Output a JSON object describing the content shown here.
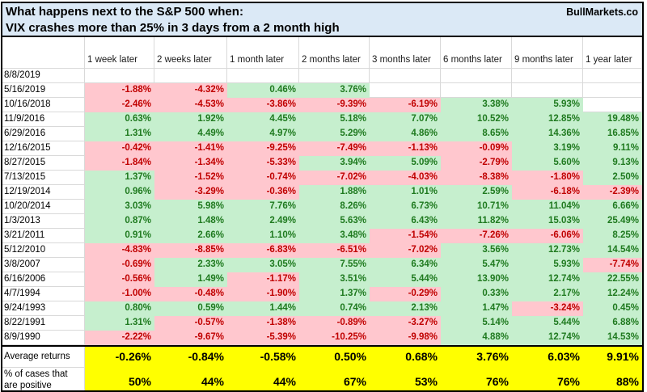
{
  "title": {
    "line1": "What happens next to the S&P 500 when:",
    "line2": "VIX crashes more than 25% in 3 days from a 2 month high",
    "brand": "BullMarkets.co"
  },
  "columns": [
    "1 week later",
    "2 weeks later",
    "1 month later",
    "2 months later",
    "3 months later",
    "6 months later",
    "9 months later",
    "1 year later"
  ],
  "rows": [
    {
      "date": "8/8/2019",
      "values": [
        "",
        "",
        "",
        "",
        "",
        "",
        "",
        ""
      ]
    },
    {
      "date": "5/16/2019",
      "values": [
        "-1.88%",
        "-4.32%",
        "0.46%",
        "3.76%",
        "",
        "",
        "",
        ""
      ]
    },
    {
      "date": "10/16/2018",
      "values": [
        "-2.46%",
        "-4.53%",
        "-3.86%",
        "-9.39%",
        "-6.19%",
        "3.38%",
        "5.93%",
        ""
      ]
    },
    {
      "date": "11/9/2016",
      "values": [
        "0.63%",
        "1.92%",
        "4.45%",
        "5.18%",
        "7.07%",
        "10.52%",
        "12.85%",
        "19.48%"
      ]
    },
    {
      "date": "6/29/2016",
      "values": [
        "1.31%",
        "4.49%",
        "4.97%",
        "5.29%",
        "4.86%",
        "8.65%",
        "14.36%",
        "16.85%"
      ]
    },
    {
      "date": "12/16/2015",
      "values": [
        "-0.42%",
        "-1.41%",
        "-9.25%",
        "-7.49%",
        "-1.13%",
        "-0.09%",
        "3.19%",
        "9.11%"
      ]
    },
    {
      "date": "8/27/2015",
      "values": [
        "-1.84%",
        "-1.34%",
        "-5.33%",
        "3.94%",
        "5.09%",
        "-2.79%",
        "5.60%",
        "9.13%"
      ]
    },
    {
      "date": "7/13/2015",
      "values": [
        "1.37%",
        "-1.52%",
        "-0.74%",
        "-7.02%",
        "-4.03%",
        "-8.38%",
        "-1.80%",
        "2.50%"
      ]
    },
    {
      "date": "12/19/2014",
      "values": [
        "0.96%",
        "-3.29%",
        "-0.36%",
        "1.88%",
        "1.01%",
        "2.59%",
        "-6.18%",
        "-2.39%"
      ]
    },
    {
      "date": "10/20/2014",
      "values": [
        "3.03%",
        "5.98%",
        "7.76%",
        "8.26%",
        "6.73%",
        "10.71%",
        "11.04%",
        "6.66%"
      ]
    },
    {
      "date": "1/3/2013",
      "values": [
        "0.87%",
        "1.48%",
        "2.49%",
        "5.63%",
        "6.43%",
        "11.82%",
        "15.03%",
        "25.49%"
      ]
    },
    {
      "date": "3/21/2011",
      "values": [
        "0.91%",
        "2.66%",
        "1.10%",
        "3.48%",
        "-1.54%",
        "-7.26%",
        "-6.06%",
        "8.25%"
      ]
    },
    {
      "date": "5/12/2010",
      "values": [
        "-4.83%",
        "-8.85%",
        "-6.83%",
        "-6.51%",
        "-7.02%",
        "3.56%",
        "12.73%",
        "14.54%"
      ]
    },
    {
      "date": "3/8/2007",
      "values": [
        "-0.69%",
        "2.33%",
        "3.05%",
        "7.55%",
        "6.34%",
        "5.47%",
        "5.93%",
        "-7.74%"
      ]
    },
    {
      "date": "6/16/2006",
      "values": [
        "-0.56%",
        "1.49%",
        "-1.17%",
        "3.51%",
        "5.44%",
        "13.90%",
        "12.74%",
        "22.55%"
      ]
    },
    {
      "date": "4/7/1994",
      "values": [
        "-1.00%",
        "-0.48%",
        "-1.90%",
        "1.37%",
        "-0.29%",
        "0.33%",
        "2.17%",
        "12.24%"
      ]
    },
    {
      "date": "9/24/1993",
      "values": [
        "0.80%",
        "0.59%",
        "1.44%",
        "0.74%",
        "2.13%",
        "1.47%",
        "-3.24%",
        "0.45%"
      ]
    },
    {
      "date": "8/22/1991",
      "values": [
        "1.31%",
        "-0.57%",
        "-1.38%",
        "-0.89%",
        "-3.27%",
        "5.14%",
        "5.44%",
        "6.88%"
      ]
    },
    {
      "date": "8/9/1990",
      "values": [
        "-2.22%",
        "-9.67%",
        "-5.39%",
        "-10.25%",
        "-9.98%",
        "4.88%",
        "12.74%",
        "14.53%"
      ]
    }
  ],
  "summary": {
    "avg_label": "Average returns",
    "avg_values": [
      "-0.26%",
      "-0.84%",
      "-0.58%",
      "0.50%",
      "0.68%",
      "3.76%",
      "6.03%",
      "9.91%"
    ],
    "pct_label_line1": "% of cases that",
    "pct_label_line2": "are positive",
    "pct_values": [
      "50%",
      "44%",
      "44%",
      "67%",
      "53%",
      "76%",
      "76%",
      "88%"
    ]
  },
  "colors": {
    "title_bg": "#dbe9f6",
    "positive_bg": "#c6efce",
    "positive_text": "#1f7a1f",
    "negative_bg": "#ffc7ce",
    "negative_text": "#c00000",
    "summary_bg": "#ffff00",
    "gridline": "#d9d9d9",
    "border": "#000000"
  }
}
